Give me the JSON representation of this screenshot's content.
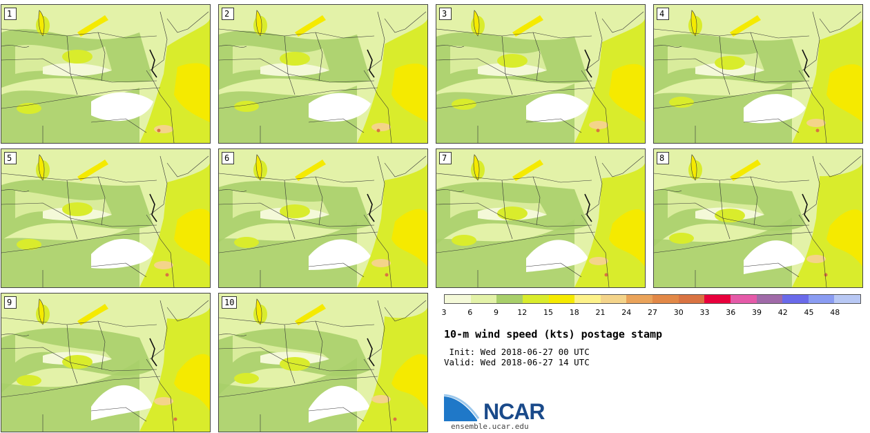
{
  "panels": [
    {
      "label": "1"
    },
    {
      "label": "2"
    },
    {
      "label": "3"
    },
    {
      "label": "4"
    },
    {
      "label": "5"
    },
    {
      "label": "6"
    },
    {
      "label": "7"
    },
    {
      "label": "8"
    },
    {
      "label": "9"
    },
    {
      "label": "10"
    }
  ],
  "legend": {
    "colors": [
      "#f4f9d8",
      "#e3f2a8",
      "#a8cf6a",
      "#d9ec2c",
      "#f5ea00",
      "#fdf28a",
      "#f4d48a",
      "#eaa35a",
      "#e28847",
      "#d97342",
      "#e8003c",
      "#e55aa8",
      "#a06aa8",
      "#6a6aea",
      "#8a9cf2",
      "#b8c8f4"
    ],
    "ticks": [
      "3",
      "6",
      "9",
      "12",
      "15",
      "18",
      "21",
      "24",
      "27",
      "30",
      "33",
      "36",
      "39",
      "42",
      "45",
      "48"
    ]
  },
  "title": "10-m wind speed (kts) postage stamp",
  "init": " Init: Wed 2018-06-27 00 UTC",
  "valid": "Valid: Wed 2018-06-27 14 UTC",
  "logo": {
    "text": "NCAR",
    "url": "ensemble.ucar.edu"
  }
}
